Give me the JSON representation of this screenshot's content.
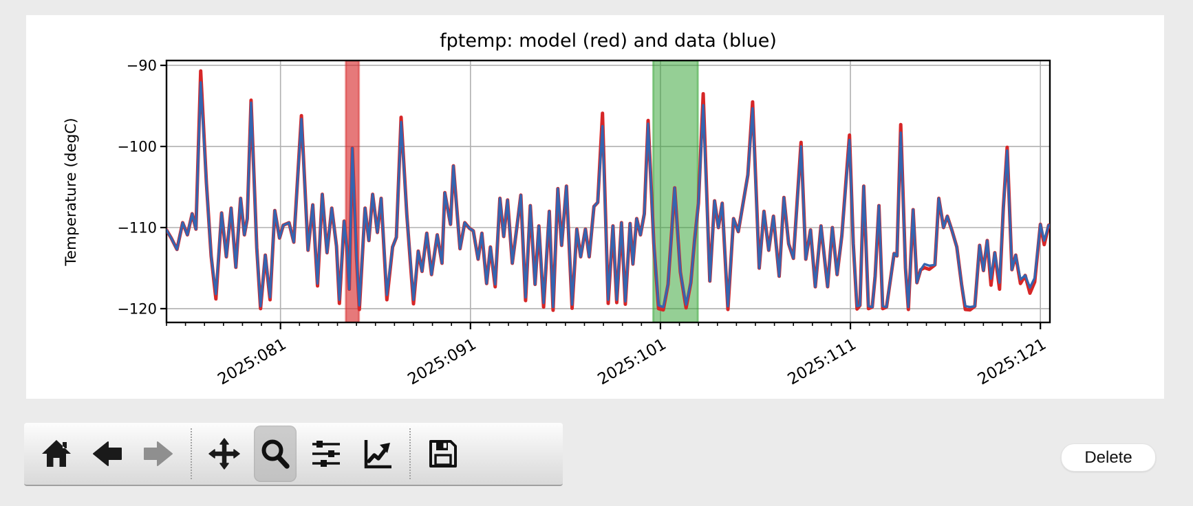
{
  "window": {
    "background": "#ebebeb",
    "figure_background": "#ffffff"
  },
  "chart_data": {
    "type": "line",
    "title": "fptemp: model (red) and data (blue)",
    "ylabel": "Temperature (degC)",
    "xlabel": "",
    "grid": true,
    "grid_color": "#b0b0b0",
    "y_ticks": [
      -90,
      -100,
      -110,
      -120
    ],
    "ylim": [
      -89.4,
      -121.7
    ],
    "x_ticks": [
      "2025:081",
      "2025:091",
      "2025:101",
      "2025:111",
      "2025:121"
    ],
    "x_tick_days": [
      81,
      91,
      101,
      111,
      121
    ],
    "x_minor_tick_step_days": 1,
    "xlim_days": [
      75.0,
      121.5
    ],
    "bands": [
      {
        "name": "red-band",
        "day_start": 84.44,
        "day_end": 85.13,
        "fill": "rgba(214,39,40,0.62)",
        "edge": "rgba(214,39,40,0.45)"
      },
      {
        "name": "green-band",
        "day_start": 100.62,
        "day_end": 102.97,
        "fill": "rgba(44,160,44,0.50)",
        "edge": "rgba(44,160,44,0.45)"
      }
    ],
    "series": [
      {
        "name": "model",
        "color": "#d62728",
        "width": 5.0
      },
      {
        "name": "data",
        "color": "#3465b0",
        "width": 3.4
      }
    ],
    "points": [
      [
        75.0,
        -110.3
      ],
      [
        75.25,
        -111.3
      ],
      [
        75.55,
        -112.7
      ],
      [
        75.85,
        -109.4
      ],
      [
        76.1,
        -110.9
      ],
      [
        76.35,
        -108.3
      ],
      [
        76.55,
        -110.2
      ],
      [
        76.8,
        -92.1
      ],
      [
        77.1,
        -104.5
      ],
      [
        77.35,
        -113.5
      ],
      [
        77.6,
        -118.2
      ],
      [
        77.9,
        -108.2
      ],
      [
        78.15,
        -113.6
      ],
      [
        78.4,
        -107.6
      ],
      [
        78.65,
        -114.9
      ],
      [
        78.9,
        -106.4
      ],
      [
        79.1,
        -110.9
      ],
      [
        79.25,
        -108.9
      ],
      [
        79.45,
        -94.6
      ],
      [
        79.75,
        -112.5
      ],
      [
        79.95,
        -119.7
      ],
      [
        80.2,
        -113.4
      ],
      [
        80.45,
        -118.6
      ],
      [
        80.7,
        -107.9
      ],
      [
        80.95,
        -111.3
      ],
      [
        81.15,
        -109.7
      ],
      [
        81.45,
        -109.4
      ],
      [
        81.7,
        -111.8
      ],
      [
        82.1,
        -96.6
      ],
      [
        82.45,
        -112.8
      ],
      [
        82.7,
        -107.2
      ],
      [
        82.95,
        -116.9
      ],
      [
        83.2,
        -105.9
      ],
      [
        83.45,
        -113.1
      ],
      [
        83.7,
        -107.6
      ],
      [
        83.95,
        -112.3
      ],
      [
        84.1,
        -118.9
      ],
      [
        84.35,
        -109.2
      ],
      [
        84.5,
        -112.6
      ],
      [
        84.62,
        -117.6
      ],
      [
        84.78,
        -100.2
      ],
      [
        85.0,
        -113.5
      ],
      [
        85.15,
        -119.6
      ],
      [
        85.45,
        -107.6
      ],
      [
        85.65,
        -111.6
      ],
      [
        85.85,
        -105.9
      ],
      [
        86.1,
        -110.6
      ],
      [
        86.3,
        -106.4
      ],
      [
        86.6,
        -118.3
      ],
      [
        86.9,
        -112.4
      ],
      [
        87.1,
        -111.2
      ],
      [
        87.35,
        -97.0
      ],
      [
        87.65,
        -108.4
      ],
      [
        88,
        -118.9
      ],
      [
        88.25,
        -112.9
      ],
      [
        88.45,
        -115.4
      ],
      [
        88.7,
        -110.7
      ],
      [
        88.95,
        -115.8
      ],
      [
        89.25,
        -110.9
      ],
      [
        89.5,
        -114.4
      ],
      [
        89.65,
        -105.7
      ],
      [
        89.95,
        -109.6
      ],
      [
        90.1,
        -102.4
      ],
      [
        90.45,
        -112.6
      ],
      [
        90.7,
        -109.4
      ],
      [
        90.95,
        -110.1
      ],
      [
        91.15,
        -110.4
      ],
      [
        91.4,
        -113.9
      ],
      [
        91.6,
        -110.7
      ],
      [
        91.85,
        -116.9
      ],
      [
        92.05,
        -112.4
      ],
      [
        92.3,
        -117.0
      ],
      [
        92.55,
        -106.4
      ],
      [
        92.75,
        -111.1
      ],
      [
        92.95,
        -106.6
      ],
      [
        93.2,
        -114.4
      ],
      [
        93.45,
        -109.8
      ],
      [
        93.65,
        -106.0
      ],
      [
        93.9,
        -118.6
      ],
      [
        94.15,
        -107.3
      ],
      [
        94.4,
        -117.0
      ],
      [
        94.6,
        -109.8
      ],
      [
        94.85,
        -119.3
      ],
      [
        95.15,
        -108.0
      ],
      [
        95.35,
        -119.8
      ],
      [
        95.6,
        -105.2
      ],
      [
        95.8,
        -112.2
      ],
      [
        96.05,
        -104.9
      ],
      [
        96.35,
        -119.5
      ],
      [
        96.6,
        -110.2
      ],
      [
        96.8,
        -113.6
      ],
      [
        97.05,
        -110.2
      ],
      [
        97.25,
        -113.6
      ],
      [
        97.5,
        -107.4
      ],
      [
        97.7,
        -106.9
      ],
      [
        97.95,
        -97.5
      ],
      [
        98.25,
        -118.9
      ],
      [
        98.5,
        -109.8
      ],
      [
        98.7,
        -118.9
      ],
      [
        98.95,
        -109.4
      ],
      [
        99.15,
        -119.1
      ],
      [
        99.4,
        -109.5
      ],
      [
        99.55,
        -114.5
      ],
      [
        99.75,
        -108.9
      ],
      [
        99.95,
        -110.9
      ],
      [
        100.15,
        -108.3
      ],
      [
        100.35,
        -97.2
      ],
      [
        100.65,
        -112.0
      ],
      [
        100.9,
        -119.6
      ],
      [
        101.15,
        -119.8
      ],
      [
        101.4,
        -117.0
      ],
      [
        101.75,
        -105.1
      ],
      [
        102.05,
        -115.5
      ],
      [
        102.35,
        -119.5
      ],
      [
        102.6,
        -116.8
      ],
      [
        102.8,
        -111.5
      ],
      [
        103.0,
        -107.0
      ],
      [
        103.25,
        -94.9
      ],
      [
        103.6,
        -116.6
      ],
      [
        103.85,
        -106.7
      ],
      [
        104.05,
        -110.0
      ],
      [
        104.25,
        -107.0
      ],
      [
        104.55,
        -119.7
      ],
      [
        104.85,
        -108.9
      ],
      [
        105.1,
        -110.5
      ],
      [
        105.6,
        -103.5
      ],
      [
        105.85,
        -95.3
      ],
      [
        106.2,
        -115.0
      ],
      [
        106.45,
        -108.0
      ],
      [
        106.7,
        -112.8
      ],
      [
        106.95,
        -108.6
      ],
      [
        107.25,
        -116.0
      ],
      [
        107.5,
        -106.3
      ],
      [
        107.75,
        -112.0
      ],
      [
        108,
        -113.8
      ],
      [
        108.4,
        -100.0
      ],
      [
        108.65,
        -113.9
      ],
      [
        108.9,
        -110.3
      ],
      [
        109.15,
        -117.3
      ],
      [
        109.45,
        -109.8
      ],
      [
        109.8,
        -117.3
      ],
      [
        110.05,
        -110.0
      ],
      [
        110.3,
        -115.8
      ],
      [
        110.55,
        -111.0
      ],
      [
        110.95,
        -99.2
      ],
      [
        111.15,
        -112.0
      ],
      [
        111.35,
        -119.7
      ],
      [
        111.5,
        -119.6
      ],
      [
        111.7,
        -104.9
      ],
      [
        111.95,
        -119.7
      ],
      [
        112.15,
        -119.8
      ],
      [
        112.3,
        -116.0
      ],
      [
        112.5,
        -107.3
      ],
      [
        112.7,
        -119.7
      ],
      [
        112.9,
        -119.8
      ],
      [
        113.1,
        -116.5
      ],
      [
        113.3,
        -113.2
      ],
      [
        113.45,
        -113.5
      ],
      [
        113.65,
        -98.3
      ],
      [
        113.9,
        -115.0
      ],
      [
        114.05,
        -119.8
      ],
      [
        114.3,
        -107.8
      ],
      [
        114.5,
        -116.8
      ],
      [
        114.7,
        -115.2
      ],
      [
        114.9,
        -114.5
      ],
      [
        115.15,
        -114.7
      ],
      [
        115.45,
        -114.6
      ],
      [
        115.65,
        -106.4
      ],
      [
        115.9,
        -110.0
      ],
      [
        116.1,
        -108.6
      ],
      [
        116.35,
        -110.4
      ],
      [
        116.6,
        -112.4
      ],
      [
        116.85,
        -117.0
      ],
      [
        117.05,
        -119.7
      ],
      [
        117.3,
        -119.8
      ],
      [
        117.55,
        -119.7
      ],
      [
        117.8,
        -112.2
      ],
      [
        118.0,
        -115.3
      ],
      [
        118.2,
        -111.6
      ],
      [
        118.4,
        -116.3
      ],
      [
        118.6,
        -113.1
      ],
      [
        118.85,
        -116.8
      ],
      [
        119.05,
        -107.6
      ],
      [
        119.25,
        -100.5
      ],
      [
        119.5,
        -115.2
      ],
      [
        119.7,
        -113.4
      ],
      [
        119.95,
        -116.4
      ],
      [
        120.2,
        -115.9
      ],
      [
        120.45,
        -117.4
      ],
      [
        120.7,
        -116.2
      ],
      [
        121.0,
        -109.6
      ],
      [
        121.2,
        -111.6
      ],
      [
        121.44,
        -109.7
      ]
    ],
    "model_delta": {
      "76.8": 1.4,
      "77.6": -0.6,
      "79.45": 0.3,
      "79.95": -0.3,
      "80.45": -0.3,
      "82.1": 0.4,
      "82.95": -0.3,
      "84.1": -0.45,
      "85.15": -0.5,
      "86.6": -0.6,
      "87.35": 0.6,
      "88": -0.5,
      "92.3": -0.3,
      "93.9": -0.4,
      "94.85": -0.5,
      "95.35": -0.4,
      "96.35": -0.45,
      "97.95": 1.6,
      "98.25": -0.45,
      "98.7": -0.35,
      "99.15": -0.35,
      "100.35": 0.4,
      "100.9": -0.4,
      "101.15": -0.35,
      "102.35": -0.4,
      "103.25": 1.4,
      "104.55": -0.4,
      "105.85": 0.8,
      "108.4": 0.5,
      "110.95": 0.6,
      "111.35": -0.35,
      "111.95": -0.3,
      "112.7": -0.3,
      "113.65": 1.0,
      "114.05": -0.3,
      "114.9": -0.45,
      "115.15": -0.45,
      "117.05": -0.4,
      "117.3": -0.35,
      "118.4": -0.8,
      "118.85": -0.8,
      "119.25": 0.4,
      "119.95": -0.5,
      "120.45": -0.7,
      "120.7": -0.5,
      "121.2": -0.5
    }
  },
  "toolbar": {
    "buttons": [
      {
        "type": "button",
        "name": "home",
        "icon": "home-icon",
        "active": false,
        "disabled": false
      },
      {
        "type": "button",
        "name": "back",
        "icon": "back-arrow-icon",
        "active": false,
        "disabled": false
      },
      {
        "type": "button",
        "name": "forward",
        "icon": "forward-arrow-icon",
        "active": false,
        "disabled": true
      },
      {
        "type": "separator"
      },
      {
        "type": "button",
        "name": "pan",
        "icon": "pan-arrows-icon",
        "active": false,
        "disabled": false
      },
      {
        "type": "button",
        "name": "zoom",
        "icon": "magnifier-icon",
        "active": true,
        "disabled": false
      },
      {
        "type": "button",
        "name": "subplots",
        "icon": "sliders-icon",
        "active": false,
        "disabled": false
      },
      {
        "type": "button",
        "name": "customize",
        "icon": "line-chart-icon",
        "active": false,
        "disabled": false
      },
      {
        "type": "separator"
      },
      {
        "type": "button",
        "name": "save",
        "icon": "floppy-disk-icon",
        "active": false,
        "disabled": false
      }
    ]
  },
  "delete_button": {
    "label": "Delete"
  }
}
